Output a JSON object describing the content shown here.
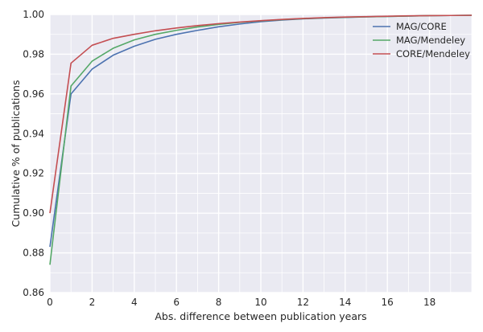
{
  "chart_data": {
    "type": "line",
    "title": "",
    "xlabel": "Abs. difference between publication years",
    "ylabel": "Cumulative % of publications",
    "xlim": [
      0,
      20
    ],
    "ylim": [
      0.86,
      1.0
    ],
    "xticks": [
      0,
      2,
      4,
      6,
      8,
      10,
      12,
      14,
      16,
      18
    ],
    "xtick_labels": [
      "0",
      "2",
      "4",
      "6",
      "8",
      "10",
      "12",
      "14",
      "16",
      "18"
    ],
    "yticks": [
      0.86,
      0.88,
      0.9,
      0.92,
      0.94,
      0.96,
      0.98,
      1.0
    ],
    "ytick_labels": [
      "0.86",
      "0.88",
      "0.90",
      "0.92",
      "0.94",
      "0.96",
      "0.98",
      "1.00"
    ],
    "grid": true,
    "legend_position": "top-right",
    "background_color": "#eaeaf2",
    "grid_color": "#ffffff",
    "x": [
      0,
      1,
      2,
      3,
      4,
      5,
      6,
      7,
      8,
      9,
      10,
      11,
      12,
      13,
      14,
      15,
      16,
      17,
      18,
      19,
      20
    ],
    "series": [
      {
        "name": "MAG/CORE",
        "color": "#4c72b0",
        "values": [
          0.883,
          0.96,
          0.9725,
          0.9795,
          0.984,
          0.9875,
          0.99,
          0.992,
          0.9938,
          0.9952,
          0.9964,
          0.9972,
          0.9978,
          0.9982,
          0.9985,
          0.9988,
          0.999,
          0.9992,
          0.9994,
          0.9995,
          0.9996
        ]
      },
      {
        "name": "MAG/Mendeley",
        "color": "#55a868",
        "values": [
          0.874,
          0.964,
          0.9765,
          0.983,
          0.9872,
          0.99,
          0.992,
          0.9937,
          0.995,
          0.996,
          0.9968,
          0.9974,
          0.9979,
          0.9983,
          0.9986,
          0.9988,
          0.999,
          0.9992,
          0.9994,
          0.9995,
          0.9996
        ]
      },
      {
        "name": "CORE/Mendeley",
        "color": "#c44e52",
        "values": [
          0.9,
          0.9755,
          0.9845,
          0.988,
          0.99,
          0.9918,
          0.9932,
          0.9944,
          0.9954,
          0.9962,
          0.9969,
          0.9975,
          0.998,
          0.9984,
          0.9987,
          0.9989,
          0.9991,
          0.9993,
          0.9994,
          0.9995,
          0.9996
        ]
      }
    ]
  }
}
